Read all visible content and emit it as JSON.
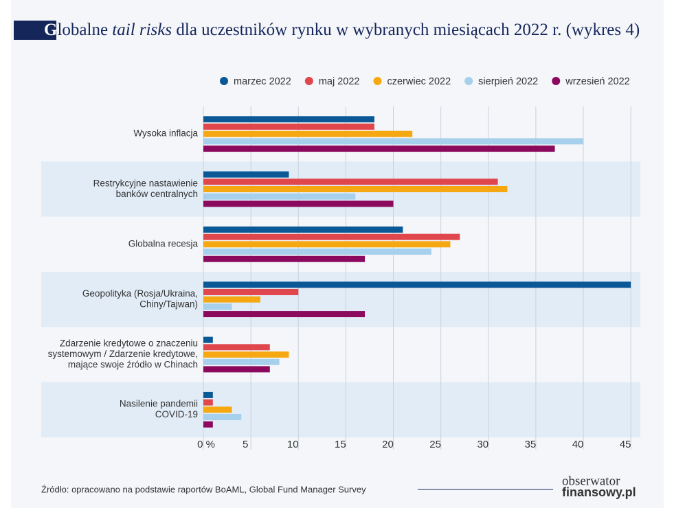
{
  "chart_data": {
    "type": "hbar",
    "title": [
      "G",
      "lobalne ",
      "tail risks",
      " dla uczestników rynku w wybranych miesiącach 2022 r. (wykres 4)"
    ],
    "categories": [
      [
        "Wysoka inflacja"
      ],
      [
        "Restrykcyjne nastawienie",
        "banków centralnych"
      ],
      [
        "Globalna recesja"
      ],
      [
        "Geopolityka (Rosja/Ukraina,",
        "Chiny/Tajwan)"
      ],
      [
        "Zdarzenie kredytowe o znaczeniu",
        "systemowym / Zdarzenie kredytowe,",
        "mające swoje źródło w Chinach"
      ],
      [
        "Nasilenie pandemii",
        "COVID-19"
      ]
    ],
    "series": [
      {
        "name": "marzec 2022",
        "color": "#0b5896",
        "values": [
          18,
          9,
          21,
          45,
          1,
          1
        ]
      },
      {
        "name": "maj 2022",
        "color": "#e0474c",
        "values": [
          18,
          31,
          27,
          10,
          7,
          1
        ]
      },
      {
        "name": "czerwiec 2022",
        "color": "#f5a811",
        "values": [
          22,
          32,
          26,
          6,
          9,
          3
        ]
      },
      {
        "name": "sierpień 2022",
        "color": "#a6d0ec",
        "values": [
          40,
          16,
          24,
          3,
          8,
          4
        ]
      },
      {
        "name": "wrzesień 2022",
        "color": "#8b0a5e",
        "values": [
          37,
          20,
          17,
          17,
          7,
          1
        ]
      }
    ],
    "xlim": [
      0,
      46
    ],
    "xticks": [
      {
        "value": 0,
        "label": "0 %"
      },
      5,
      10,
      15,
      20,
      25,
      30,
      35,
      40,
      45
    ],
    "grid": true,
    "source": "Źródło: opracowano na podstawie raportów BoAML, Global Fund Manager Survey",
    "logo": [
      "obserwator",
      "finansowy.pl"
    ]
  }
}
